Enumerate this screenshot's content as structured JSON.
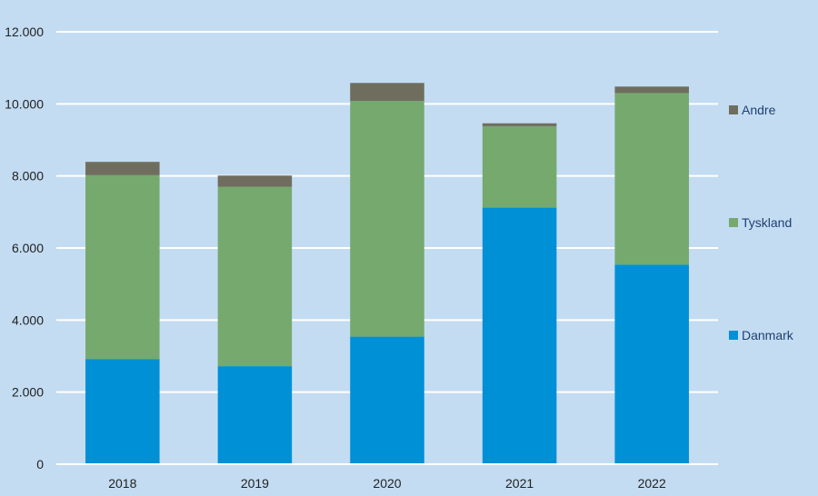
{
  "chart_data": {
    "type": "bar",
    "stacked": true,
    "categories": [
      "2018",
      "2019",
      "2020",
      "2021",
      "2022"
    ],
    "series": [
      {
        "name": "Danmark",
        "color": "#0090d6",
        "values": [
          2920,
          2720,
          3540,
          7120,
          5540
        ]
      },
      {
        "name": "Tyskland",
        "color": "#76a96e",
        "values": [
          5100,
          4980,
          6540,
          2260,
          4760
        ]
      },
      {
        "name": "Andre",
        "color": "#6f6e5e",
        "values": [
          370,
          310,
          500,
          80,
          180
        ]
      }
    ],
    "y_ticks": [
      "0",
      "2.000",
      "4.000",
      "6.000",
      "8.000",
      "10.000",
      "12.000"
    ],
    "ylim": [
      0,
      12000
    ],
    "grid": true,
    "legend_position": "right",
    "legend_order": [
      "Andre",
      "Tyskland",
      "Danmark"
    ],
    "background": "#c3dcf2",
    "grid_color": "#ffffff"
  }
}
